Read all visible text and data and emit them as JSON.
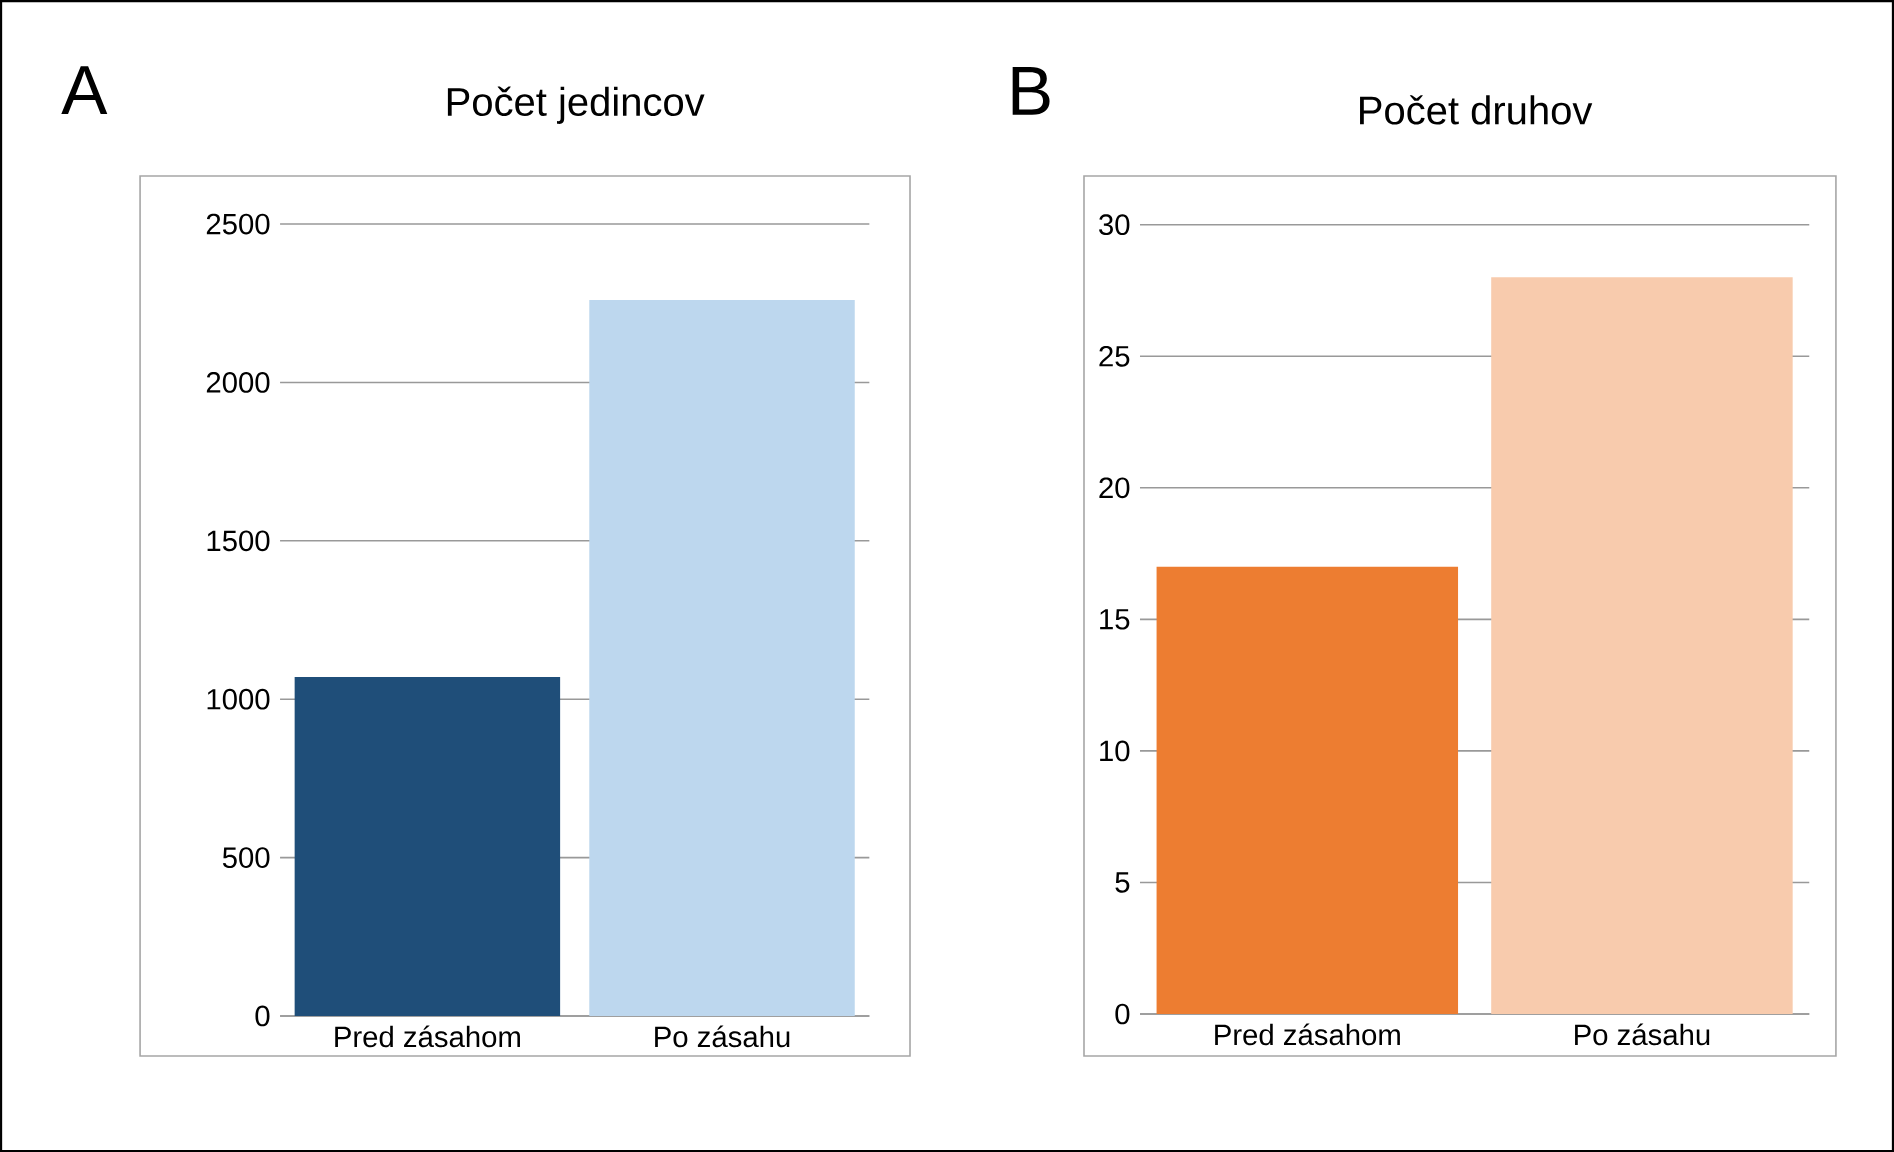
{
  "chart_data": [
    {
      "type": "bar",
      "title": "Počet jedincov",
      "annotations": [
        "A"
      ],
      "categories": [
        "Pred zásahom",
        "Po zásahu"
      ],
      "values": [
        1070,
        2260
      ],
      "colors": [
        "#1f4e79",
        "#bdd7ee"
      ],
      "ylim": [
        0,
        2500
      ],
      "yticks": [
        0,
        500,
        1000,
        1500,
        2000,
        2500
      ],
      "grid": "y"
    },
    {
      "type": "bar",
      "title": "Počet druhov",
      "annotations": [
        "B"
      ],
      "categories": [
        "Pred zásahom",
        "Po zásahu"
      ],
      "values": [
        17,
        28
      ],
      "colors": [
        "#ed7d31",
        "#f8cbad"
      ],
      "ylim": [
        0,
        30
      ],
      "yticks": [
        0,
        5,
        10,
        15,
        20,
        25,
        30
      ],
      "grid": "y"
    }
  ]
}
